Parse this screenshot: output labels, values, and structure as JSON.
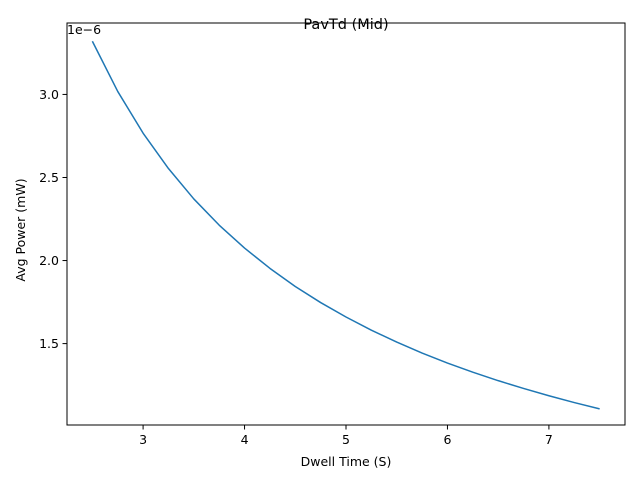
{
  "chart_data": {
    "type": "line",
    "title": "PavTd (Mid)",
    "xlabel": "Dwell Time (S)",
    "ylabel": "Avg Power (mW)",
    "y_offset_label": "1e−6",
    "xlim": [
      2.25,
      7.75
    ],
    "ylim": [
      1.01e-06,
      3.43e-06
    ],
    "xticks": [
      3,
      4,
      5,
      6,
      7
    ],
    "xtick_labels": [
      "3",
      "4",
      "5",
      "6",
      "7"
    ],
    "yticks": [
      1.5e-06,
      2e-06,
      2.5e-06,
      3e-06
    ],
    "ytick_labels": [
      "1.5",
      "2.0",
      "2.5",
      "3.0"
    ],
    "grid": false,
    "series": [
      {
        "color": "#1f77b4",
        "x": [
          2.5,
          2.75,
          3.0,
          3.25,
          3.5,
          3.75,
          4.0,
          4.25,
          4.5,
          4.75,
          5.0,
          5.25,
          5.5,
          5.75,
          6.0,
          6.25,
          6.5,
          6.75,
          7.0,
          7.25,
          7.5
        ],
        "y": [
          3.32e-06,
          3.018e-06,
          2.767e-06,
          2.554e-06,
          2.371e-06,
          2.213e-06,
          2.075e-06,
          1.953e-06,
          1.844e-06,
          1.747e-06,
          1.66e-06,
          1.581e-06,
          1.509e-06,
          1.443e-06,
          1.383e-06,
          1.328e-06,
          1.277e-06,
          1.23e-06,
          1.186e-06,
          1.145e-06,
          1.107e-06
        ]
      }
    ]
  }
}
